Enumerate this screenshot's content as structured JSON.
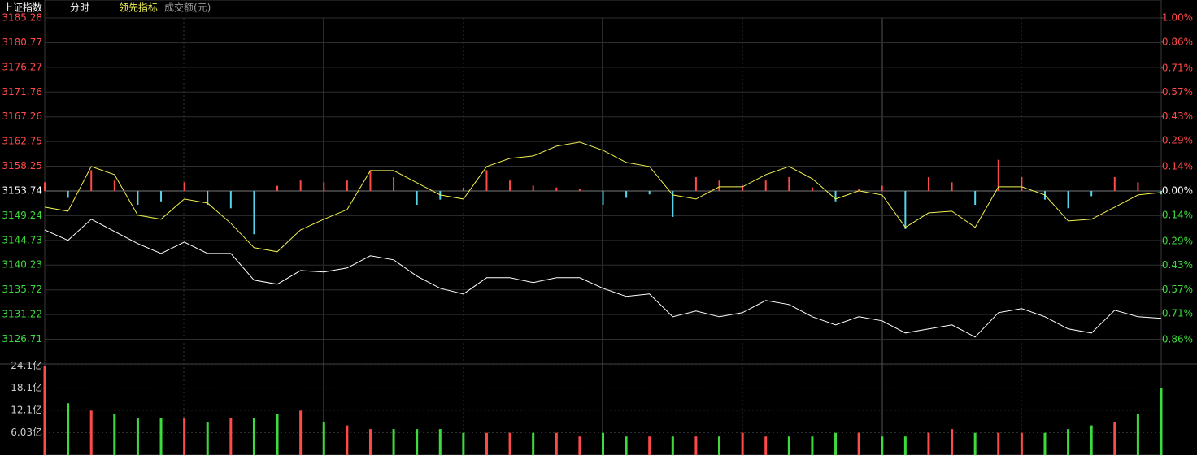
{
  "chart_data": [
    {
      "type": "line",
      "title": "上证指数",
      "subtitle": "分时",
      "colors": {
        "up": "#ff4a4a",
        "down": "#3ddc3d",
        "flat": "#ffffff"
      },
      "grid": true,
      "ylim": [
        3122.2,
        3185.28
      ],
      "yticks": [
        3185.28,
        3180.77,
        3176.27,
        3171.76,
        3167.26,
        3162.75,
        3158.25,
        3153.74,
        3149.24,
        3144.73,
        3140.23,
        3135.72,
        3131.22,
        3126.71
      ],
      "y2lim": [
        -1.0,
        1.0
      ],
      "y2ticks": [
        {
          "value": 1.0,
          "label": "1.00%"
        },
        {
          "value": 0.86,
          "label": "0.86%"
        },
        {
          "value": 0.71,
          "label": "0.71%"
        },
        {
          "value": 0.57,
          "label": "0.57%"
        },
        {
          "value": 0.43,
          "label": "0.43%"
        },
        {
          "value": 0.29,
          "label": "0.29%"
        },
        {
          "value": 0.14,
          "label": "0.14%"
        },
        {
          "value": 0.0,
          "label": "0.00%"
        },
        {
          "value": -0.14,
          "label": "0.14%"
        },
        {
          "value": -0.29,
          "label": "0.29%"
        },
        {
          "value": -0.43,
          "label": "0.43%"
        },
        {
          "value": -0.57,
          "label": "0.57%"
        },
        {
          "value": -0.71,
          "label": "0.71%"
        },
        {
          "value": -0.86,
          "label": "0.86%"
        }
      ],
      "series": [
        {
          "type": "line",
          "color": "#ffffff",
          "values": [
            3146.65,
            3144.73,
            3148.58,
            3146.36,
            3144.14,
            3142.36,
            3144.43,
            3142.36,
            3142.36,
            3137.48,
            3136.74,
            3139.25,
            3138.96,
            3139.7,
            3141.92,
            3141.18,
            3138.22,
            3136.0,
            3134.96,
            3137.92,
            3137.92,
            3137.03,
            3137.92,
            3137.92,
            3136.0,
            3134.52,
            3134.96,
            3130.82,
            3131.85,
            3130.82,
            3131.56,
            3133.78,
            3133.04,
            3130.82,
            3129.34,
            3130.82,
            3130.08,
            3127.86,
            3128.6,
            3129.34,
            3127.12,
            3131.56,
            3132.3,
            3130.82,
            3128.6,
            3127.86,
            3132.0,
            3130.82,
            3130.52
          ]
        },
        {
          "type": "line",
          "name": "领先指标",
          "color": "#f0f050",
          "values": [
            3150.8,
            3150.06,
            3158.2,
            3156.72,
            3149.32,
            3148.58,
            3152.28,
            3151.54,
            3147.84,
            3143.4,
            3142.66,
            3146.65,
            3148.58,
            3150.35,
            3157.46,
            3157.46,
            3155.24,
            3153.02,
            3152.28,
            3158.2,
            3159.68,
            3160.12,
            3161.9,
            3162.64,
            3161.16,
            3158.94,
            3158.2,
            3153.02,
            3152.28,
            3154.5,
            3154.5,
            3156.72,
            3158.2,
            3155.98,
            3152.28,
            3153.76,
            3153.02,
            3147.1,
            3149.76,
            3150.06,
            3147.1,
            3154.5,
            3154.5,
            3153.02,
            3148.28,
            3148.58,
            3150.8,
            3153.02,
            3153.46
          ]
        },
        {
          "type": "bar",
          "axis": "y2",
          "color": "#ff4a4a",
          "negative_color": "#55d5e8",
          "values": [
            0.05,
            -0.04,
            0.12,
            0.06,
            -0.08,
            -0.06,
            0.05,
            -0.08,
            -0.1,
            -0.25,
            0.03,
            0.06,
            0.05,
            0.06,
            0.12,
            0.08,
            -0.08,
            -0.05,
            0.02,
            0.12,
            0.06,
            0.03,
            0.02,
            0.01,
            -0.08,
            -0.04,
            -0.02,
            -0.15,
            0.08,
            0.06,
            0.03,
            0.06,
            0.08,
            0.02,
            -0.06,
            0.01,
            0.03,
            -0.22,
            0.08,
            0.05,
            -0.08,
            0.18,
            0.08,
            -0.05,
            -0.1,
            -0.03,
            0.08,
            0.05,
            -0.02
          ]
        }
      ]
    },
    {
      "type": "bar",
      "title": "成交额(元)",
      "ylim": [
        0,
        24.6
      ],
      "yticks": [
        {
          "value": 24.1,
          "label": "24.1亿"
        },
        {
          "value": 18.1,
          "label": "18.1亿"
        },
        {
          "value": 12.1,
          "label": "12.1亿"
        },
        {
          "value": 6.03,
          "label": "6.03亿"
        }
      ],
      "values": [
        24,
        14,
        12,
        11,
        10,
        10,
        10,
        9,
        10,
        10,
        11,
        12,
        9,
        8,
        7,
        7,
        7,
        7,
        6,
        6,
        6,
        6,
        6,
        5,
        6,
        5,
        5,
        5,
        5,
        5,
        6,
        5,
        5,
        5,
        6,
        6,
        5,
        5,
        6,
        7,
        6,
        6,
        6,
        6,
        7,
        8,
        9,
        11,
        18
      ]
    }
  ]
}
